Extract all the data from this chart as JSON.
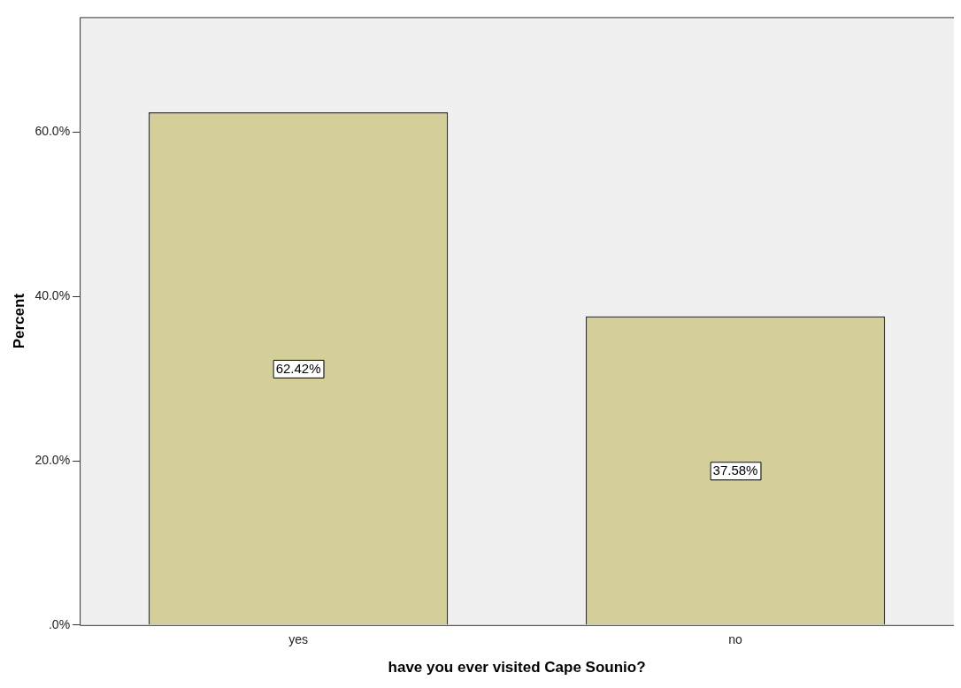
{
  "chart_data": {
    "type": "bar",
    "xlabel": "have you ever visited Cape Sounio?",
    "ylabel": "Percent",
    "categories": [
      "yes",
      "no"
    ],
    "values": [
      62.42,
      37.58
    ],
    "value_labels": [
      "62.42%",
      "37.58%"
    ],
    "color": "#d4cf98",
    "ylim": [
      0,
      74
    ],
    "yticks": [
      {
        "value": 0,
        "label": ".0%"
      },
      {
        "value": 20,
        "label": "20.0%"
      },
      {
        "value": 40,
        "label": "40.0%"
      },
      {
        "value": 60,
        "label": "60.0%"
      }
    ],
    "grid": false,
    "legend": false
  }
}
